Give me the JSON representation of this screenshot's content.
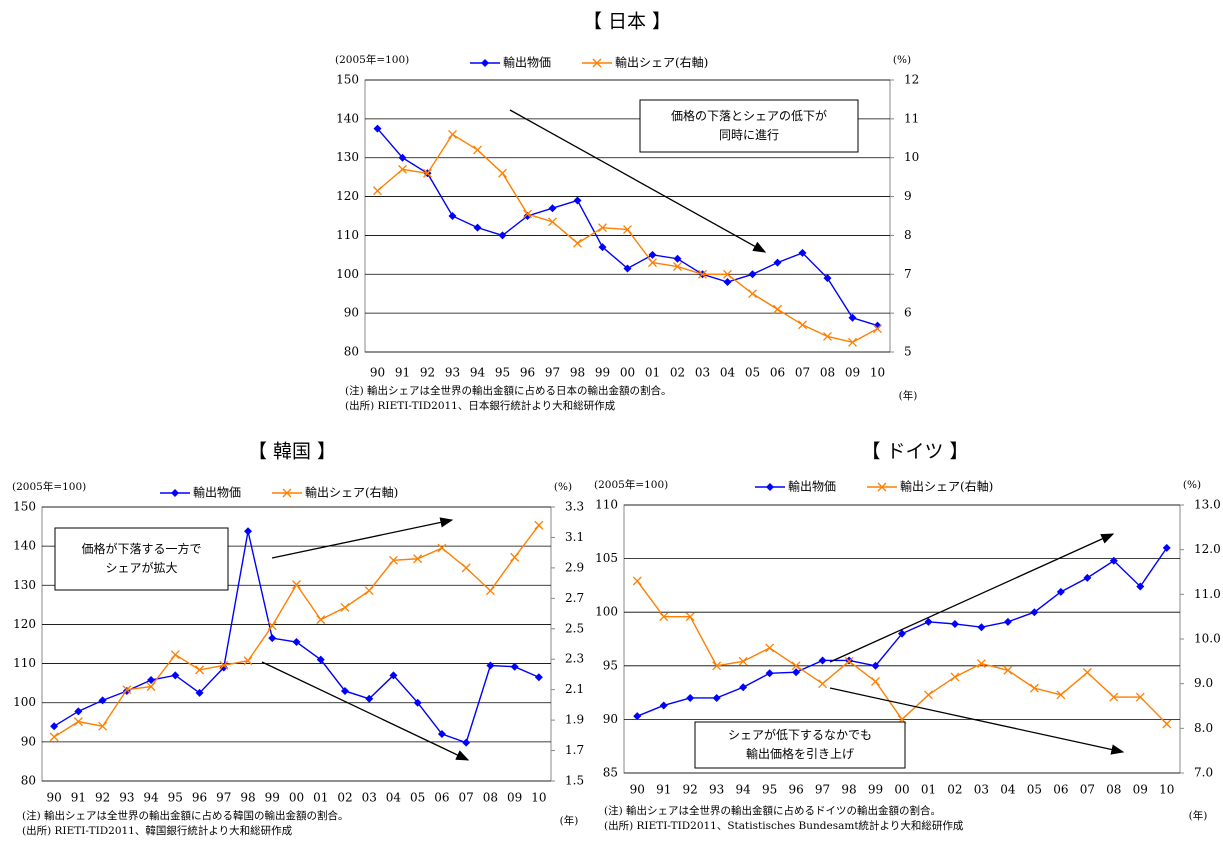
{
  "chart_data": [
    {
      "type": "line",
      "title": "【 日本 】",
      "y_label": "(2005年=100)",
      "y2_label": "(%)",
      "x_label": "(年)",
      "notes": [
        "(注) 輸出シェアは全世界の輸出金額に占める日本の輸出金額の割合。",
        "(出所) RIETI-TID2011、日本銀行統計より大和総研作成"
      ],
      "annotation": [
        "価格の下落とシェアの低下が",
        "同時に進行"
      ],
      "categories": [
        "90",
        "91",
        "92",
        "93",
        "94",
        "95",
        "96",
        "97",
        "98",
        "99",
        "00",
        "01",
        "02",
        "03",
        "04",
        "05",
        "06",
        "07",
        "08",
        "09",
        "10"
      ],
      "series": [
        {
          "name": "輸出物価",
          "color": "#0000ff",
          "marker": "diamond",
          "axis": "y",
          "values": [
            137.5,
            130,
            126,
            115,
            112,
            110,
            115,
            117,
            119,
            107,
            101.5,
            105,
            104,
            100,
            98,
            100,
            103,
            105.5,
            99,
            88.8,
            86.8
          ]
        },
        {
          "name": "輸出シェア(右軸)",
          "color": "#ff7f00",
          "marker": "x",
          "axis": "y2",
          "values": [
            9.15,
            9.7,
            9.6,
            10.6,
            10.2,
            9.6,
            8.55,
            8.35,
            7.8,
            8.2,
            8.15,
            7.3,
            7.2,
            7.0,
            7.0,
            6.5,
            6.1,
            5.7,
            5.4,
            5.25,
            5.6
          ]
        }
      ],
      "ylim": [
        80,
        150
      ],
      "yticks": [
        80,
        90,
        100,
        110,
        120,
        130,
        140,
        150
      ],
      "y2lim": [
        5,
        12
      ],
      "y2ticks": [
        5,
        6,
        7,
        8,
        9,
        10,
        11,
        12
      ],
      "grid": true
    },
    {
      "type": "line",
      "title": "【 韓国 】",
      "y_label": "(2005年=100)",
      "y2_label": "(%)",
      "x_label": "(年)",
      "notes": [
        "(注) 輸出シェアは全世界の輸出金額に占める韓国の輸出金額の割合。",
        "(出所) RIETI-TID2011、韓国銀行統計より大和総研作成"
      ],
      "annotation": [
        "価格が下落する一方で",
        "シェアが拡大"
      ],
      "categories": [
        "90",
        "91",
        "92",
        "93",
        "94",
        "95",
        "96",
        "97",
        "98",
        "99",
        "00",
        "01",
        "02",
        "03",
        "04",
        "05",
        "06",
        "07",
        "08",
        "09",
        "10"
      ],
      "series": [
        {
          "name": "輸出物価",
          "color": "#0000ff",
          "marker": "diamond",
          "axis": "y",
          "values": [
            94,
            97.8,
            100.6,
            103,
            105.8,
            107,
            102.5,
            109,
            143.8,
            116.5,
            115.5,
            111,
            103,
            101,
            107,
            100,
            92,
            89.8,
            109.5,
            109.2,
            106.5
          ]
        },
        {
          "name": "輸出シェア(右軸)",
          "color": "#ff7f00",
          "marker": "x",
          "axis": "y2",
          "values": [
            1.79,
            1.89,
            1.86,
            2.1,
            2.12,
            2.33,
            2.23,
            2.26,
            2.29,
            2.52,
            2.79,
            2.56,
            2.64,
            2.75,
            2.95,
            2.96,
            3.03,
            2.9,
            2.75,
            2.97,
            3.18
          ]
        }
      ],
      "ylim": [
        80,
        150
      ],
      "yticks": [
        80,
        90,
        100,
        110,
        120,
        130,
        140,
        150
      ],
      "y2lim": [
        1.5,
        3.3
      ],
      "y2ticks": [
        1.5,
        1.7,
        1.9,
        2.1,
        2.3,
        2.5,
        2.7,
        2.9,
        3.1,
        3.3
      ],
      "grid": true
    },
    {
      "type": "line",
      "title": "【 ドイツ 】",
      "y_label": "(2005年=100)",
      "y2_label": "(%)",
      "x_label": "(年)",
      "notes": [
        "(注) 輸出シェアは全世界の輸出金額に占めるドイツの輸出金額の割合。",
        "(出所) RIETI-TID2011、Statistisches Bundesamt統計より大和総研作成"
      ],
      "annotation": [
        "シェアが低下するなかでも",
        "輸出価格を引き上げ"
      ],
      "categories": [
        "90",
        "91",
        "92",
        "93",
        "94",
        "95",
        "96",
        "97",
        "98",
        "99",
        "00",
        "01",
        "02",
        "03",
        "04",
        "05",
        "06",
        "07",
        "08",
        "09",
        "10"
      ],
      "series": [
        {
          "name": "輸出物価",
          "color": "#0000ff",
          "marker": "diamond",
          "axis": "y",
          "values": [
            90.3,
            91.3,
            92,
            92,
            93,
            94.3,
            94.4,
            95.5,
            95.5,
            95,
            98,
            99.1,
            98.9,
            98.6,
            99.1,
            100,
            101.9,
            103.2,
            104.8,
            102.4,
            106
          ]
        },
        {
          "name": "輸出シェア(右軸)",
          "color": "#ff7f00",
          "marker": "x",
          "axis": "y2",
          "values": [
            11.3,
            10.5,
            10.5,
            9.4,
            9.5,
            9.8,
            9.4,
            9.0,
            9.5,
            9.05,
            8.2,
            8.75,
            9.15,
            9.45,
            9.3,
            8.9,
            8.75,
            9.25,
            8.7,
            8.7,
            8.1
          ]
        }
      ],
      "ylim": [
        85,
        110
      ],
      "yticks": [
        85,
        90,
        95,
        100,
        105,
        110
      ],
      "y2lim": [
        7,
        13
      ],
      "y2ticks": [
        {
          "value": 7,
          "label": "7.0"
        },
        {
          "value": 8,
          "label": "8.0"
        },
        {
          "value": 9,
          "label": "9.0"
        },
        {
          "value": 10,
          "label": "10.0"
        },
        {
          "value": 11,
          "label": "11.0"
        },
        {
          "value": 12,
          "label": "12.0"
        },
        {
          "value": 13,
          "label": "13.0"
        }
      ],
      "grid": true
    }
  ]
}
